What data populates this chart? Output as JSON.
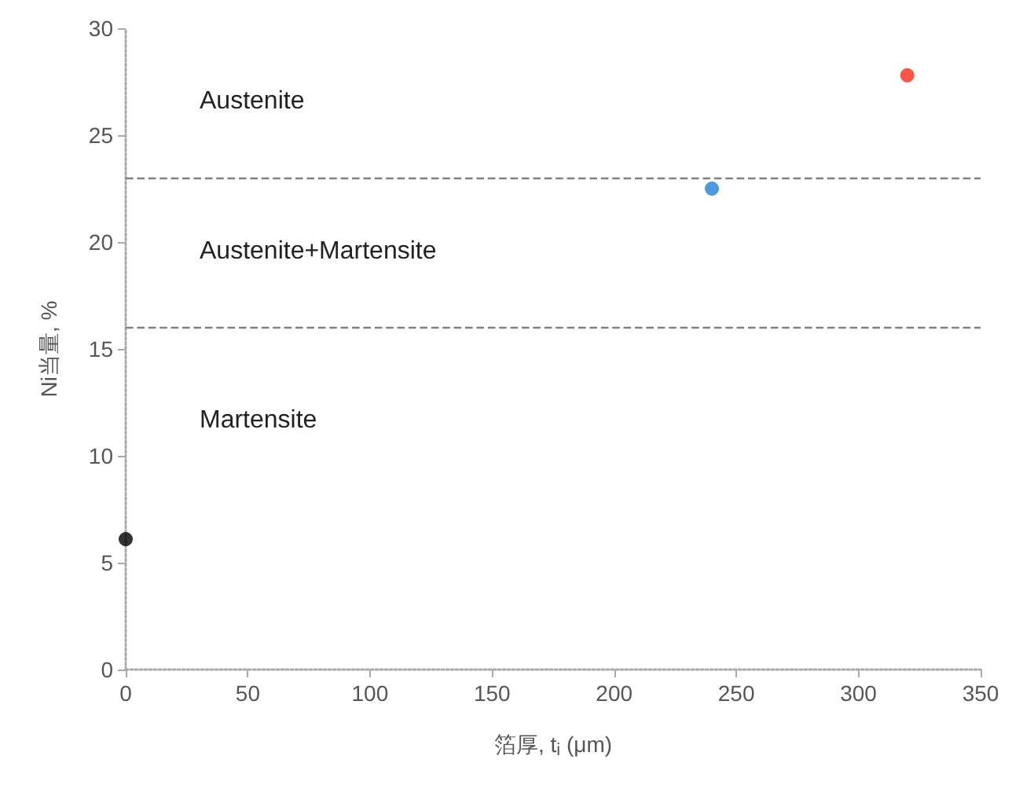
{
  "chart_data": {
    "type": "scatter",
    "xlabel": "箔厚, t$_{i}$ (μm)",
    "ylabel": "Ni当量, %",
    "xlim": [
      0,
      350
    ],
    "xticks": [
      0,
      50,
      100,
      150,
      200,
      250,
      300,
      350
    ],
    "ylim": [
      0,
      30
    ],
    "yticks": [
      0,
      5,
      10,
      15,
      20,
      25,
      30
    ],
    "grid": false,
    "marker": "circle",
    "series": [
      {
        "x": [
          0
        ],
        "values": [
          6.1
        ],
        "color": "#000000"
      },
      {
        "x": [
          240
        ],
        "values": [
          22.5
        ],
        "color": "#1f7fd6"
      },
      {
        "x": [
          320
        ],
        "values": [
          27.8
        ],
        "color": "#ff2a1a"
      }
    ],
    "ref_lines": [
      {
        "axis": "y",
        "value": 23,
        "label": null,
        "color": "#808080",
        "line_style": "dashed"
      },
      {
        "axis": "y",
        "value": 16,
        "label": null,
        "color": "#808080",
        "line_style": "dashed"
      }
    ],
    "annotations": [
      "Austenite",
      "Austenite+Martensite",
      "Martensite"
    ]
  }
}
